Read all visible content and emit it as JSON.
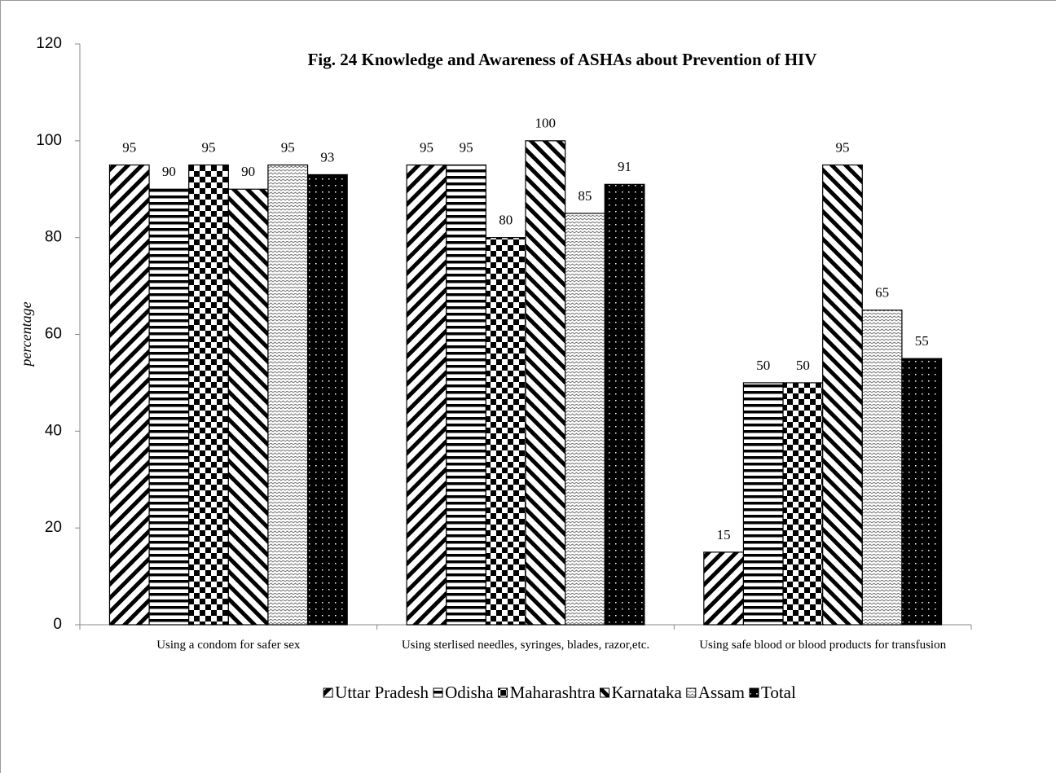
{
  "chart_data": {
    "type": "bar",
    "title": "Fig. 24  Knowledge and Awareness of ASHAs  about Prevention of  HIV",
    "ylabel": "percentage",
    "categories": [
      "Using a condom for safer sex",
      "Using sterlised needles, syringes, blades, razor,etc.",
      "Using safe blood or blood products for transfusion"
    ],
    "series": [
      {
        "name": "Uttar Pradesh",
        "color": "#000000",
        "values": [
          95,
          95,
          15
        ]
      },
      {
        "name": "Odisha",
        "color": "#000000",
        "values": [
          90,
          95,
          50
        ]
      },
      {
        "name": "Maharashtra",
        "color": "#000000",
        "values": [
          95,
          80,
          50
        ]
      },
      {
        "name": "Karnataka",
        "color": "#000000",
        "values": [
          90,
          100,
          95
        ]
      },
      {
        "name": "Assam",
        "color": "#000000",
        "values": [
          95,
          85,
          65
        ]
      },
      {
        "name": "Total",
        "color": "#000000",
        "values": [
          93,
          91,
          55
        ]
      }
    ],
    "ylim": [
      0,
      120
    ],
    "yticks": [
      0,
      20,
      40,
      60,
      80,
      100,
      120
    ],
    "grid": false,
    "legend": "bottom"
  }
}
